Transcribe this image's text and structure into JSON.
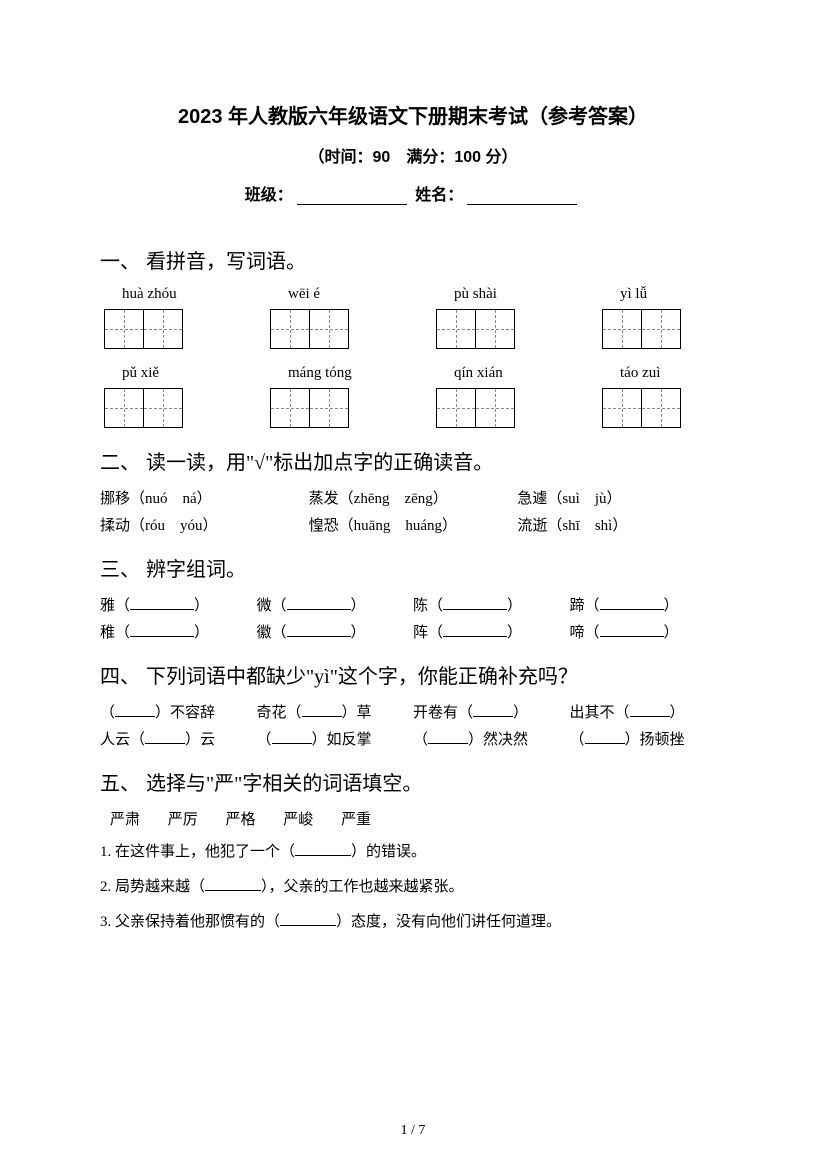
{
  "header": {
    "title": "2023 年人教版六年级语文下册期末考试（参考答案）",
    "subtitle": "（时间：90　满分：100 分）",
    "class_label": "班级：",
    "name_label": "姓名："
  },
  "sections": {
    "s1": {
      "num": "一、",
      "title": "看拼音，写词语。"
    },
    "s2": {
      "num": "二、",
      "title": "读一读，用\"√\"标出加点字的正确读音。"
    },
    "s3": {
      "num": "三、",
      "title": "辨字组词。"
    },
    "s4": {
      "num": "四、",
      "title": "下列词语中都缺少\"yì\"这个字，你能正确补充吗？"
    },
    "s5": {
      "num": "五、",
      "title": "选择与\"严\"字相关的词语填空。"
    }
  },
  "q1": {
    "row1": [
      {
        "pinyin": "huà zhóu"
      },
      {
        "pinyin": "wēi é"
      },
      {
        "pinyin": "pù shài"
      },
      {
        "pinyin": "yì lǚ"
      }
    ],
    "row2": [
      {
        "pinyin": "pǔ xiě"
      },
      {
        "pinyin": "máng tóng"
      },
      {
        "pinyin": "qín xián"
      },
      {
        "pinyin": "táo zuì"
      }
    ]
  },
  "q2": {
    "items": [
      {
        "a": "挪移（nuó　ná）",
        "b": "蒸发（zhēng　zēng）",
        "c": "急遽（suì　jù）"
      },
      {
        "a": "揉动（róu　yóu）",
        "b": "惶恐（huāng　huáng）",
        "c": "流逝（shī　shì）"
      }
    ]
  },
  "q3": {
    "row1": [
      "雅（",
      "微（",
      "陈（",
      "蹄（"
    ],
    "row2": [
      "稚（",
      "徽（",
      "阵（",
      "啼（"
    ]
  },
  "q4": {
    "row1": {
      "a_pre": "（",
      "a_post": "）不容辞",
      "b_pre": "奇花（",
      "b_post": "）草",
      "c_pre": "开卷有（",
      "c_post": "）",
      "d_pre": "出其不（",
      "d_post": "）"
    },
    "row2": {
      "a_pre": "人云（",
      "a_post": "）云",
      "b_pre": "（",
      "b_post": "）如反掌",
      "c_pre": "（",
      "c_post": "）然决然",
      "d_pre": "（",
      "d_post": "）扬顿挫"
    }
  },
  "q5": {
    "bank": [
      "严肃",
      "严厉",
      "严格",
      "严峻",
      "严重"
    ],
    "items": [
      {
        "pre": "1. 在这件事上，他犯了一个（",
        "post": "）的错误。"
      },
      {
        "pre": "2. 局势越来越（",
        "post": "），父亲的工作也越来越紧张。"
      },
      {
        "pre": "3. 父亲保持着他那惯有的（",
        "post": "）态度，没有向他们讲任何道理。"
      }
    ]
  },
  "footer": {
    "page": "1 / 7"
  }
}
